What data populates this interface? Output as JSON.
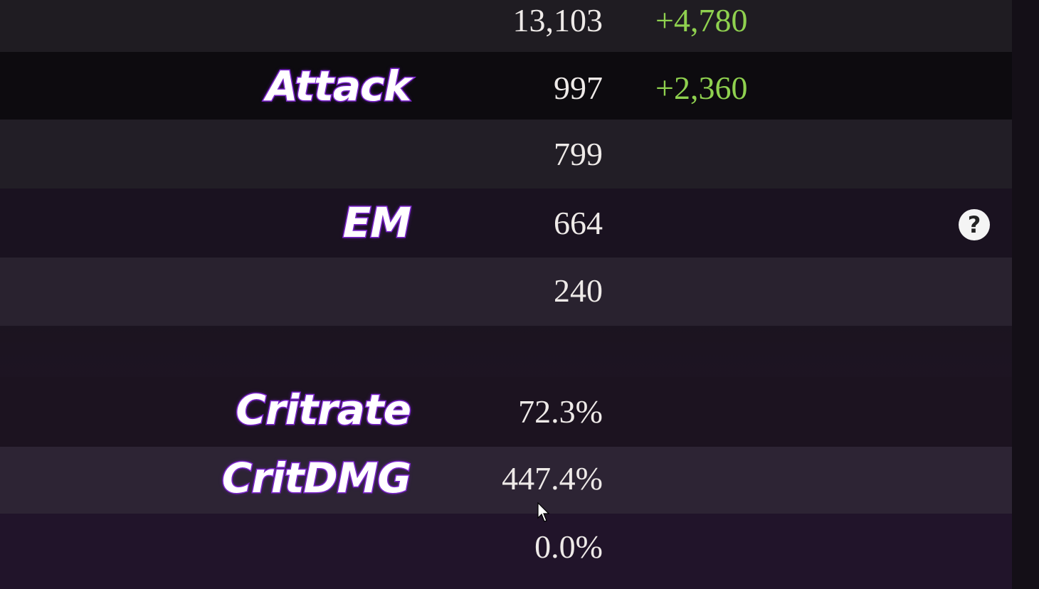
{
  "stats": [
    {
      "label": "",
      "value": "13,103",
      "bonus": "+4,780"
    },
    {
      "label": "Attack",
      "value": "997",
      "bonus": "+2,360"
    },
    {
      "label": "",
      "value": "799",
      "bonus": ""
    },
    {
      "label": "EM",
      "value": "664",
      "bonus": ""
    },
    {
      "label": "",
      "value": "240",
      "bonus": ""
    },
    {
      "label": "Critrate",
      "value": "72.3%",
      "bonus": ""
    },
    {
      "label": "CritDMG",
      "value": "447.4%",
      "bonus": ""
    },
    {
      "label": "",
      "value": "0.0%",
      "bonus": ""
    }
  ],
  "help_icon": "question-circle-icon",
  "help_glyph": "?",
  "colors": {
    "label_outline": "#8a2be2",
    "bonus": "#8fd14f",
    "value": "#eeeae8"
  }
}
